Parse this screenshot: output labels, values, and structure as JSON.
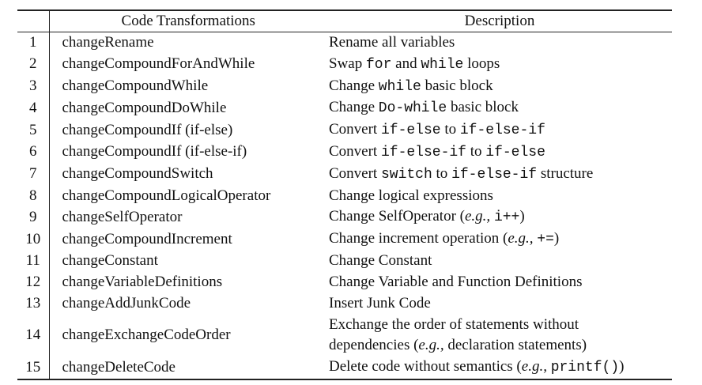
{
  "table": {
    "headers": {
      "index": "",
      "code": "Code Transformations",
      "description": "Description"
    },
    "rows": [
      {
        "index": "1",
        "name": "changeRename",
        "desc": [
          {
            "t": "Rename all variables"
          }
        ]
      },
      {
        "index": "2",
        "name": "changeCompoundForAndWhile",
        "desc": [
          {
            "t": "Swap "
          },
          {
            "t": "for",
            "s": "mono"
          },
          {
            "t": " and "
          },
          {
            "t": "while",
            "s": "mono"
          },
          {
            "t": " loops"
          }
        ]
      },
      {
        "index": "3",
        "name": "changeCompoundWhile",
        "desc": [
          {
            "t": "Change "
          },
          {
            "t": "while",
            "s": "mono"
          },
          {
            "t": " basic block"
          }
        ]
      },
      {
        "index": "4",
        "name": "changeCompoundDoWhile",
        "desc": [
          {
            "t": "Change "
          },
          {
            "t": "Do-while",
            "s": "mono"
          },
          {
            "t": " basic block"
          }
        ]
      },
      {
        "index": "5",
        "name": "changeCompoundIf (if-else)",
        "desc": [
          {
            "t": "Convert "
          },
          {
            "t": "if-else",
            "s": "mono"
          },
          {
            "t": " to "
          },
          {
            "t": "if-else-if",
            "s": "mono"
          }
        ]
      },
      {
        "index": "6",
        "name": "changeCompoundIf (if-else-if)",
        "desc": [
          {
            "t": "Convert "
          },
          {
            "t": "if-else-if",
            "s": "mono"
          },
          {
            "t": " to "
          },
          {
            "t": "if-else",
            "s": "mono"
          }
        ]
      },
      {
        "index": "7",
        "name": "changeCompoundSwitch",
        "desc": [
          {
            "t": "Convert "
          },
          {
            "t": "switch",
            "s": "mono"
          },
          {
            "t": " to "
          },
          {
            "t": "if-else-if",
            "s": "mono"
          },
          {
            "t": " structure"
          }
        ]
      },
      {
        "index": "8",
        "name": "changeCompoundLogicalOperator",
        "desc": [
          {
            "t": "Change logical expressions"
          }
        ]
      },
      {
        "index": "9",
        "name": "changeSelfOperator",
        "desc": [
          {
            "t": "Change SelfOperator ("
          },
          {
            "t": "e.g.,",
            "s": "it"
          },
          {
            "t": " "
          },
          {
            "t": "i++",
            "s": "mono"
          },
          {
            "t": ")"
          }
        ]
      },
      {
        "index": "10",
        "name": "changeCompoundIncrement",
        "desc": [
          {
            "t": "Change increment operation ("
          },
          {
            "t": "e.g.,",
            "s": "it"
          },
          {
            "t": " "
          },
          {
            "t": "+=",
            "s": "mono"
          },
          {
            "t": ")"
          }
        ]
      },
      {
        "index": "11",
        "name": "changeConstant",
        "desc": [
          {
            "t": "Change Constant"
          }
        ]
      },
      {
        "index": "12",
        "name": "changeVariableDefinitions",
        "desc": [
          {
            "t": "Change Variable and Function Definitions"
          }
        ]
      },
      {
        "index": "13",
        "name": "changeAddJunkCode",
        "desc": [
          {
            "t": "Insert Junk Code"
          }
        ]
      },
      {
        "index": "14",
        "name": "changeExchangeCodeOrder",
        "tall": true,
        "desc": [
          {
            "t": "Exchange the order of statements without"
          },
          {
            "br": true
          },
          {
            "t": "dependencies ("
          },
          {
            "t": "e.g.,",
            "s": "it"
          },
          {
            "t": " declaration statements)"
          }
        ]
      },
      {
        "index": "15",
        "name": "changeDeleteCode",
        "desc": [
          {
            "t": "Delete code without semantics ("
          },
          {
            "t": "e.g.,",
            "s": "it"
          },
          {
            "t": " "
          },
          {
            "t": "printf()",
            "s": "mono"
          },
          {
            "t": ")"
          }
        ]
      }
    ]
  }
}
